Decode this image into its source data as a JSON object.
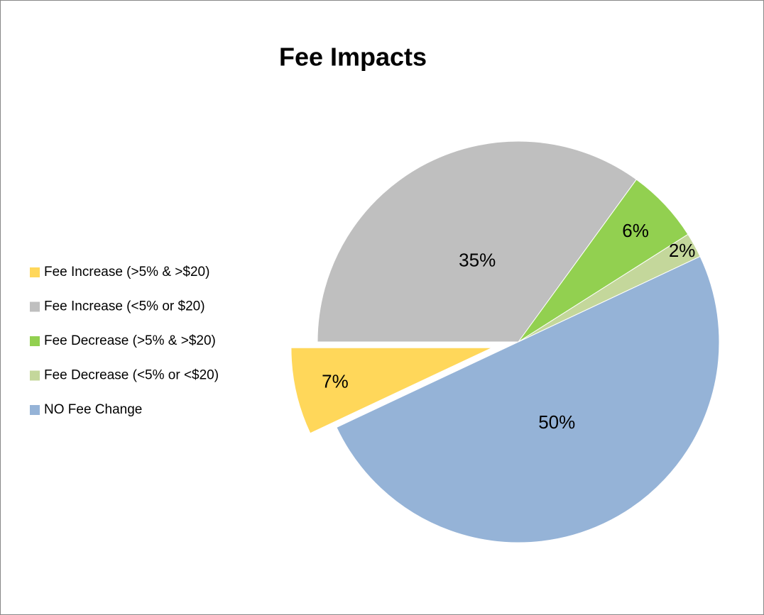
{
  "chart_data": {
    "type": "pie",
    "title": "Fee Impacts",
    "categories": [
      "Fee Increase (>5% & >$20)",
      "Fee Increase (<5% or $20)",
      "Fee Decrease (>5% & >$20)",
      "Fee Decrease (<5% or <$20)",
      "NO Fee Change"
    ],
    "values": [
      7,
      35,
      6,
      2,
      50
    ],
    "value_labels": [
      "7%",
      "35%",
      "6%",
      "2%",
      "50%"
    ],
    "colors": [
      "#ffd75a",
      "#bfbfbf",
      "#92d050",
      "#c4d79b",
      "#95b3d7"
    ],
    "legend": "left"
  }
}
